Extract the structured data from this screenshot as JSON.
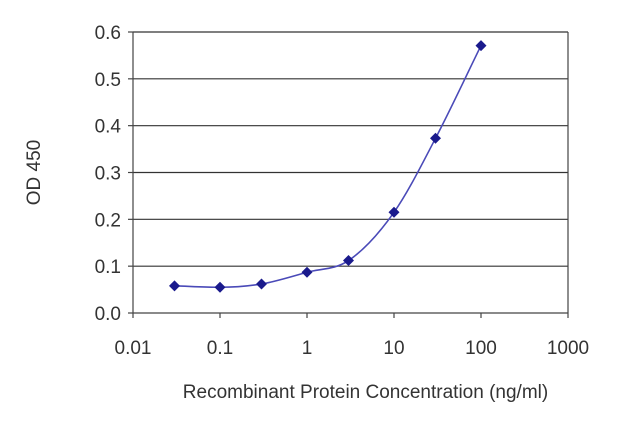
{
  "chart_data": {
    "type": "scatter",
    "title": "",
    "xlabel": "Recombinant Protein Concentration (ng/ml)",
    "ylabel": "OD 450",
    "x_scale": "log",
    "xlim": [
      0.01,
      1000
    ],
    "ylim": [
      0.0,
      0.6
    ],
    "x_ticks": [
      "0.01",
      "0.1",
      "1",
      "10",
      "100",
      "1000"
    ],
    "y_ticks": [
      "0.0",
      "0.1",
      "0.2",
      "0.3",
      "0.4",
      "0.5",
      "0.6"
    ],
    "grid": "horizontal",
    "legend": "none",
    "series": [
      {
        "x": [
          0.03,
          0.1,
          0.3,
          1,
          3,
          10,
          30,
          100
        ],
        "y": [
          0.058,
          0.055,
          0.062,
          0.087,
          0.112,
          0.215,
          0.373,
          0.571
        ]
      }
    ],
    "fit_curve": true
  },
  "colors": {
    "marker": "#1a1a8c",
    "curve": "#4a4ab8",
    "grid": "#333333",
    "axis": "#444444",
    "text": "#333333"
  }
}
